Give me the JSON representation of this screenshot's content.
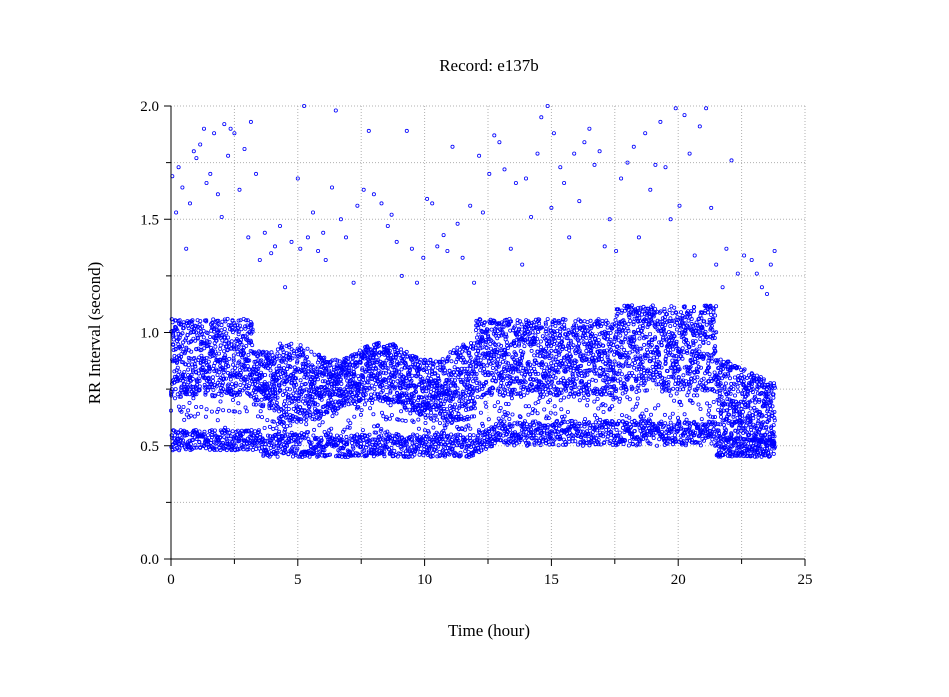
{
  "chart_data": {
    "type": "scatter",
    "title": "Record:  e137b",
    "xlabel": "Time (hour)",
    "ylabel": "RR Interval (second)",
    "xlim": [
      0,
      25
    ],
    "ylim": [
      0,
      2.0
    ],
    "xticks": [
      0,
      5,
      10,
      15,
      20,
      25
    ],
    "xtick_labels": [
      "0",
      "5",
      "10",
      "15",
      "20",
      "25"
    ],
    "yticks": [
      0.0,
      0.5,
      1.0,
      1.5,
      2.0
    ],
    "ytick_labels": [
      "0.0",
      "0.5",
      "1.0",
      "1.5",
      "2.0"
    ],
    "grid": true,
    "marker_color": "#0000ff",
    "series": [
      {
        "values_summary": "dense RR-interval trace",
        "bands": [
          {
            "segment": "0-3.2h",
            "upper_band": [
              0.72,
              1.05
            ],
            "lower_band": [
              0.48,
              0.56
            ]
          },
          {
            "segment": "3.2-12h",
            "upper_band": [
              0.65,
              0.95
            ],
            "lower_band": [
              0.45,
              0.55
            ]
          },
          {
            "segment": "12-21.5h",
            "upper_band": [
              0.7,
              1.1
            ],
            "lower_band": [
              0.5,
              0.6
            ]
          },
          {
            "segment": "21.5-23.8h",
            "upper_band": [
              0.55,
              0.85
            ],
            "lower_band": [
              0.45,
              0.52
            ]
          }
        ],
        "outliers": [
          [
            0.05,
            1.69
          ],
          [
            0.2,
            1.53
          ],
          [
            0.3,
            1.73
          ],
          [
            0.45,
            1.64
          ],
          [
            0.6,
            1.37
          ],
          [
            0.75,
            1.57
          ],
          [
            0.9,
            1.8
          ],
          [
            1.0,
            1.77
          ],
          [
            1.15,
            1.83
          ],
          [
            1.3,
            1.9
          ],
          [
            1.4,
            1.66
          ],
          [
            1.55,
            1.7
          ],
          [
            1.7,
            1.88
          ],
          [
            1.85,
            1.61
          ],
          [
            2.0,
            1.51
          ],
          [
            2.1,
            1.92
          ],
          [
            2.25,
            1.78
          ],
          [
            2.35,
            1.9
          ],
          [
            2.5,
            1.88
          ],
          [
            2.7,
            1.63
          ],
          [
            2.9,
            1.81
          ],
          [
            3.05,
            1.42
          ],
          [
            3.15,
            1.93
          ],
          [
            3.35,
            1.7
          ],
          [
            3.5,
            1.32
          ],
          [
            3.7,
            1.44
          ],
          [
            3.95,
            1.35
          ],
          [
            4.1,
            1.38
          ],
          [
            4.3,
            1.47
          ],
          [
            4.5,
            1.2
          ],
          [
            4.75,
            1.4
          ],
          [
            5.0,
            1.68
          ],
          [
            5.1,
            1.37
          ],
          [
            5.25,
            2.0
          ],
          [
            5.4,
            1.42
          ],
          [
            5.6,
            1.53
          ],
          [
            5.8,
            1.36
          ],
          [
            6.0,
            1.44
          ],
          [
            6.1,
            1.32
          ],
          [
            6.35,
            1.64
          ],
          [
            6.5,
            1.98
          ],
          [
            6.7,
            1.5
          ],
          [
            6.9,
            1.42
          ],
          [
            7.2,
            1.22
          ],
          [
            7.35,
            1.56
          ],
          [
            7.6,
            1.63
          ],
          [
            7.8,
            1.89
          ],
          [
            8.0,
            1.61
          ],
          [
            8.3,
            1.57
          ],
          [
            8.55,
            1.47
          ],
          [
            8.7,
            1.52
          ],
          [
            8.9,
            1.4
          ],
          [
            9.1,
            1.25
          ],
          [
            9.3,
            1.89
          ],
          [
            9.5,
            1.37
          ],
          [
            9.7,
            1.22
          ],
          [
            9.95,
            1.33
          ],
          [
            10.1,
            1.59
          ],
          [
            10.3,
            1.57
          ],
          [
            10.5,
            1.38
          ],
          [
            10.75,
            1.43
          ],
          [
            10.9,
            1.36
          ],
          [
            11.1,
            1.82
          ],
          [
            11.3,
            1.48
          ],
          [
            11.5,
            1.33
          ],
          [
            11.8,
            1.56
          ],
          [
            11.95,
            1.22
          ],
          [
            12.15,
            1.78
          ],
          [
            12.3,
            1.53
          ],
          [
            12.55,
            1.7
          ],
          [
            12.75,
            1.87
          ],
          [
            12.95,
            1.84
          ],
          [
            13.15,
            1.72
          ],
          [
            13.4,
            1.37
          ],
          [
            13.6,
            1.66
          ],
          [
            13.85,
            1.3
          ],
          [
            14.0,
            1.68
          ],
          [
            14.2,
            1.51
          ],
          [
            14.45,
            1.79
          ],
          [
            14.6,
            1.95
          ],
          [
            14.85,
            2.0
          ],
          [
            15.0,
            1.55
          ],
          [
            15.1,
            1.88
          ],
          [
            15.35,
            1.73
          ],
          [
            15.5,
            1.66
          ],
          [
            15.7,
            1.42
          ],
          [
            15.9,
            1.79
          ],
          [
            16.1,
            1.58
          ],
          [
            16.3,
            1.84
          ],
          [
            16.5,
            1.9
          ],
          [
            16.7,
            1.74
          ],
          [
            16.9,
            1.8
          ],
          [
            17.1,
            1.38
          ],
          [
            17.3,
            1.5
          ],
          [
            17.55,
            1.36
          ],
          [
            17.75,
            1.68
          ],
          [
            18.0,
            1.75
          ],
          [
            18.25,
            1.82
          ],
          [
            18.45,
            1.42
          ],
          [
            18.7,
            1.88
          ],
          [
            18.9,
            1.63
          ],
          [
            19.1,
            1.74
          ],
          [
            19.3,
            1.93
          ],
          [
            19.5,
            1.73
          ],
          [
            19.7,
            1.5
          ],
          [
            19.9,
            1.99
          ],
          [
            20.05,
            1.56
          ],
          [
            20.25,
            1.96
          ],
          [
            20.45,
            1.79
          ],
          [
            20.65,
            1.34
          ],
          [
            20.85,
            1.91
          ],
          [
            21.1,
            1.99
          ],
          [
            21.3,
            1.55
          ],
          [
            21.5,
            1.3
          ],
          [
            21.75,
            1.2
          ],
          [
            21.9,
            1.37
          ],
          [
            22.1,
            1.76
          ],
          [
            22.35,
            1.26
          ],
          [
            22.6,
            1.34
          ],
          [
            22.9,
            1.32
          ],
          [
            23.1,
            1.26
          ],
          [
            23.3,
            1.2
          ],
          [
            23.5,
            1.17
          ],
          [
            23.65,
            1.3
          ],
          [
            23.8,
            1.36
          ]
        ]
      }
    ]
  }
}
